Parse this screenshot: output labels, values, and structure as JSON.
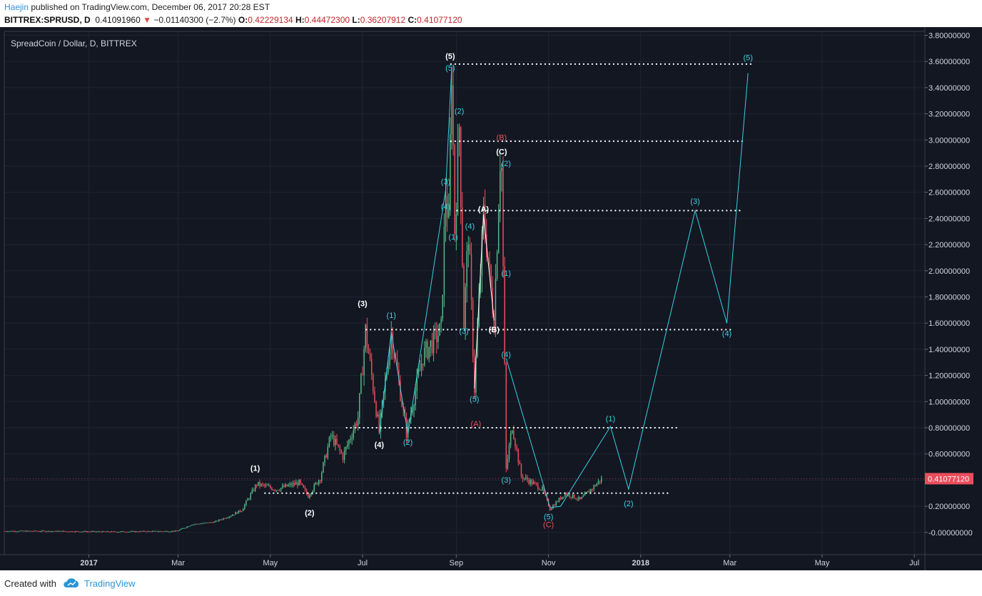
{
  "header": {
    "author": "Haejin",
    "published": " published on TradingView.com, December 06, 2017 20:28 EST",
    "symbol": "BITTREX:SPRUSD, D",
    "last": "0.41091960",
    "arrow": "▼",
    "change": "−0.01140300 (−2.7%)",
    "o_label": "O:",
    "o_value": "0.42229134",
    "h_label": "H:",
    "h_value": "0.44472300",
    "l_label": "L:",
    "l_value": "0.36207912",
    "c_label": "C:",
    "c_value": "0.41077120"
  },
  "footer": {
    "created": "Created with",
    "brand": "TradingView",
    "logo_icon": "tradingview-cloud-icon"
  },
  "chart_data": {
    "type": "candlestick",
    "title": "SpreadCoin / Dollar, D, BITTREX",
    "theme": {
      "background": "#131722",
      "up": "#53b987",
      "down": "#eb4d5c",
      "wave": "#36d1e0",
      "label_white": "#ffffff",
      "label_cyan": "#36d1e0",
      "label_red": "#eb4d5c",
      "price_tag": "#eb4d5c"
    },
    "y_ticks": [
      {
        "v": 3.8,
        "t": "3.80000000"
      },
      {
        "v": 3.6,
        "t": "3.60000000"
      },
      {
        "v": 3.4,
        "t": "3.40000000"
      },
      {
        "v": 3.2,
        "t": "3.20000000"
      },
      {
        "v": 3.0,
        "t": "3.00000000"
      },
      {
        "v": 2.8,
        "t": "2.80000000"
      },
      {
        "v": 2.6,
        "t": "2.60000000"
      },
      {
        "v": 2.4,
        "t": "2.40000000"
      },
      {
        "v": 2.2,
        "t": "2.20000000"
      },
      {
        "v": 2.0,
        "t": "2.00000000"
      },
      {
        "v": 1.8,
        "t": "1.80000000"
      },
      {
        "v": 1.6,
        "t": "1.60000000"
      },
      {
        "v": 1.4,
        "t": "1.40000000"
      },
      {
        "v": 1.2,
        "t": "1.20000000"
      },
      {
        "v": 1.0,
        "t": "1.00000000"
      },
      {
        "v": 0.8,
        "t": "0.80000000"
      },
      {
        "v": 0.6,
        "t": "0.60000000"
      },
      {
        "v": 0.4,
        "t": "0.40000000"
      },
      {
        "v": 0.2,
        "t": "0.20000000"
      },
      {
        "v": 0.0,
        "t": "-0.00000000"
      }
    ],
    "x_ticks": [
      {
        "d": "2017-01-01",
        "t": "2017",
        "bold": true
      },
      {
        "d": "2017-03-01",
        "t": "Mar"
      },
      {
        "d": "2017-05-01",
        "t": "May"
      },
      {
        "d": "2017-07-01",
        "t": "Jul"
      },
      {
        "d": "2017-09-01",
        "t": "Sep"
      },
      {
        "d": "2017-11-01",
        "t": "Nov"
      },
      {
        "d": "2018-01-01",
        "t": "2018",
        "bold": true
      },
      {
        "d": "2018-03-01",
        "t": "Mar"
      },
      {
        "d": "2018-05-01",
        "t": "May"
      },
      {
        "d": "2018-07-01",
        "t": "Jul"
      }
    ],
    "x_range": [
      "2016-11-06",
      "2018-07-08"
    ],
    "y_range": [
      -0.17,
      3.83
    ],
    "last_price": 0.4107712,
    "last_price_label": "0.41077120",
    "price_path": [
      [
        "2016-11-06",
        0.01
      ],
      [
        "2016-12-01",
        0.01
      ],
      [
        "2017-01-15",
        0.005
      ],
      [
        "2017-02-28",
        0.01
      ],
      [
        "2017-03-10",
        0.06
      ],
      [
        "2017-03-25",
        0.08
      ],
      [
        "2017-04-05",
        0.13
      ],
      [
        "2017-04-12",
        0.17
      ],
      [
        "2017-04-22",
        0.37
      ],
      [
        "2017-05-05",
        0.33
      ],
      [
        "2017-05-20",
        0.38
      ],
      [
        "2017-05-26",
        0.28
      ],
      [
        "2017-06-03",
        0.42
      ],
      [
        "2017-06-10",
        0.74
      ],
      [
        "2017-06-18",
        0.58
      ],
      [
        "2017-06-28",
        0.88
      ],
      [
        "2017-07-03",
        1.54
      ],
      [
        "2017-07-12",
        0.77
      ],
      [
        "2017-07-20",
        1.53
      ],
      [
        "2017-07-30",
        0.76
      ],
      [
        "2017-08-10",
        1.35
      ],
      [
        "2017-08-22",
        1.55
      ],
      [
        "2017-08-25",
        2.62
      ],
      [
        "2017-08-27",
        2.34
      ],
      [
        "2017-08-29",
        3.57
      ],
      [
        "2017-08-31",
        2.32
      ],
      [
        "2017-09-03",
        3.11
      ],
      [
        "2017-09-06",
        1.6
      ],
      [
        "2017-09-09",
        2.31
      ],
      [
        "2017-09-13",
        1.1
      ],
      [
        "2017-09-19",
        2.43
      ],
      [
        "2017-09-26",
        1.62
      ],
      [
        "2017-09-30",
        2.87
      ],
      [
        "2017-10-01",
        2.78
      ],
      [
        "2017-10-04",
        0.48
      ],
      [
        "2017-10-08",
        0.82
      ],
      [
        "2017-10-14",
        0.43
      ],
      [
        "2017-10-28",
        0.33
      ],
      [
        "2017-11-02",
        0.18
      ],
      [
        "2017-11-12",
        0.3
      ],
      [
        "2017-11-22",
        0.25
      ],
      [
        "2017-12-01",
        0.35
      ],
      [
        "2017-12-06",
        0.41
      ]
    ],
    "levels": [
      3.58,
      2.99,
      2.46,
      1.55,
      0.8,
      0.3
    ],
    "labels": [
      {
        "d": "2017-08-28",
        "v": 3.62,
        "t": "(5)",
        "c": "white"
      },
      {
        "d": "2017-08-28",
        "v": 3.53,
        "t": "(5)",
        "c": "cyan"
      },
      {
        "d": "2017-09-03",
        "v": 3.2,
        "t": "(2)",
        "c": "cyan"
      },
      {
        "d": "2017-08-25",
        "v": 2.66,
        "t": "(3)",
        "c": "cyan"
      },
      {
        "d": "2017-08-25",
        "v": 2.47,
        "t": "(4)",
        "c": "cyan"
      },
      {
        "d": "2017-08-30",
        "v": 2.24,
        "t": "(1)",
        "c": "cyan"
      },
      {
        "d": "2017-09-10",
        "v": 2.32,
        "t": "(4)",
        "c": "cyan"
      },
      {
        "d": "2017-09-19",
        "v": 2.45,
        "t": "(A)",
        "c": "white"
      },
      {
        "d": "2017-10-01",
        "v": 3.0,
        "t": "(B)",
        "c": "red"
      },
      {
        "d": "2017-10-01",
        "v": 2.89,
        "t": "(C)",
        "c": "white"
      },
      {
        "d": "2017-10-04",
        "v": 2.8,
        "t": "(2)",
        "c": "cyan"
      },
      {
        "d": "2017-10-04",
        "v": 1.96,
        "t": "(1)",
        "c": "cyan"
      },
      {
        "d": "2017-09-06",
        "v": 1.52,
        "t": "(3)",
        "c": "cyan"
      },
      {
        "d": "2017-09-26",
        "v": 1.53,
        "t": "(B)",
        "c": "white"
      },
      {
        "d": "2017-10-04",
        "v": 1.34,
        "t": "(4)",
        "c": "cyan"
      },
      {
        "d": "2017-09-13",
        "v": 1.0,
        "t": "(5)",
        "c": "cyan"
      },
      {
        "d": "2017-09-14",
        "v": 0.81,
        "t": "(A)",
        "c": "red"
      },
      {
        "d": "2017-07-01",
        "v": 1.73,
        "t": "(3)",
        "c": "white"
      },
      {
        "d": "2017-07-20",
        "v": 1.64,
        "t": "(1)",
        "c": "cyan"
      },
      {
        "d": "2017-07-12",
        "v": 0.65,
        "t": "(4)",
        "c": "white"
      },
      {
        "d": "2017-07-31",
        "v": 0.67,
        "t": "(2)",
        "c": "cyan"
      },
      {
        "d": "2017-04-21",
        "v": 0.47,
        "t": "(1)",
        "c": "white"
      },
      {
        "d": "2017-05-27",
        "v": 0.13,
        "t": "(2)",
        "c": "white"
      },
      {
        "d": "2017-10-04",
        "v": 0.38,
        "t": "(3)",
        "c": "cyan"
      },
      {
        "d": "2017-11-01",
        "v": 0.1,
        "t": "(5)",
        "c": "cyan"
      },
      {
        "d": "2017-11-01",
        "v": 0.04,
        "t": "(C)",
        "c": "red"
      },
      {
        "d": "2017-12-12",
        "v": 0.85,
        "t": "(1)",
        "c": "cyan"
      },
      {
        "d": "2017-12-24",
        "v": 0.2,
        "t": "(2)",
        "c": "cyan"
      },
      {
        "d": "2018-02-06",
        "v": 2.51,
        "t": "(3)",
        "c": "cyan"
      },
      {
        "d": "2018-02-27",
        "v": 1.5,
        "t": "(4)",
        "c": "cyan"
      },
      {
        "d": "2018-03-13",
        "v": 3.61,
        "t": "(5)",
        "c": "cyan"
      }
    ]
  }
}
